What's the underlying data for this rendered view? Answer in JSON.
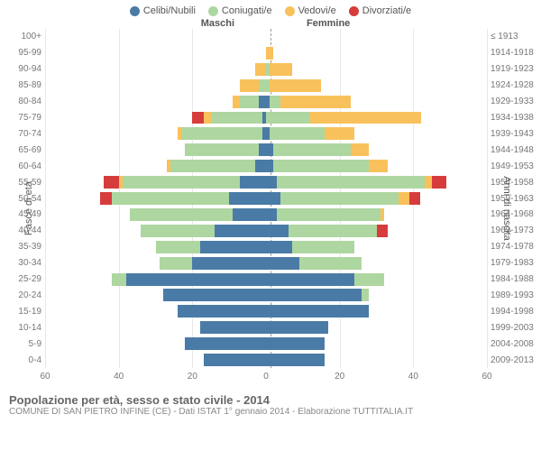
{
  "chart": {
    "type": "population-pyramid",
    "legend": [
      {
        "label": "Celibi/Nubili",
        "color": "#4a7ba6"
      },
      {
        "label": "Coniugati/e",
        "color": "#aed6a0"
      },
      {
        "label": "Vedovi/e",
        "color": "#f9c15b"
      },
      {
        "label": "Divorziati/e",
        "color": "#d73c3c"
      }
    ],
    "header_left": "Maschi",
    "header_right": "Femmine",
    "y_left_label": "Fasce di età",
    "y_right_label": "Anni di nascita",
    "x_max": 60,
    "x_ticks": [
      60,
      40,
      20,
      0,
      20,
      40,
      60
    ],
    "background_color": "#ffffff",
    "grid_color": "#e8e8e8",
    "centerline_color": "#999999",
    "rows": [
      {
        "age": "100+",
        "birth": "≤ 1913",
        "m": [
          0,
          0,
          0,
          0
        ],
        "f": [
          0,
          0,
          0,
          0
        ]
      },
      {
        "age": "95-99",
        "birth": "1914-1918",
        "m": [
          0,
          0,
          0,
          0
        ],
        "f": [
          0,
          0,
          2,
          0
        ]
      },
      {
        "age": "90-94",
        "birth": "1919-1923",
        "m": [
          0,
          0,
          3,
          0
        ],
        "f": [
          0,
          1,
          6,
          0
        ]
      },
      {
        "age": "85-89",
        "birth": "1924-1928",
        "m": [
          0,
          2,
          5,
          0
        ],
        "f": [
          0,
          1,
          14,
          0
        ]
      },
      {
        "age": "80-84",
        "birth": "1929-1933",
        "m": [
          2,
          5,
          2,
          0
        ],
        "f": [
          1,
          3,
          19,
          0
        ]
      },
      {
        "age": "75-79",
        "birth": "1934-1938",
        "m": [
          1,
          14,
          2,
          3
        ],
        "f": [
          0,
          12,
          30,
          0
        ]
      },
      {
        "age": "70-74",
        "birth": "1939-1943",
        "m": [
          1,
          22,
          1,
          0
        ],
        "f": [
          1,
          15,
          8,
          0
        ]
      },
      {
        "age": "65-69",
        "birth": "1944-1948",
        "m": [
          2,
          20,
          0,
          0
        ],
        "f": [
          2,
          21,
          5,
          0
        ]
      },
      {
        "age": "60-64",
        "birth": "1949-1953",
        "m": [
          3,
          23,
          1,
          0
        ],
        "f": [
          2,
          26,
          5,
          0
        ]
      },
      {
        "age": "55-59",
        "birth": "1954-1958",
        "m": [
          7,
          32,
          1,
          4
        ],
        "f": [
          3,
          40,
          2,
          4
        ]
      },
      {
        "age": "50-54",
        "birth": "1959-1963",
        "m": [
          10,
          32,
          0,
          3
        ],
        "f": [
          4,
          32,
          3,
          3
        ]
      },
      {
        "age": "45-49",
        "birth": "1964-1968",
        "m": [
          9,
          28,
          0,
          0
        ],
        "f": [
          3,
          28,
          1,
          0
        ]
      },
      {
        "age": "40-44",
        "birth": "1969-1973",
        "m": [
          14,
          20,
          0,
          0
        ],
        "f": [
          6,
          24,
          0,
          3
        ]
      },
      {
        "age": "35-39",
        "birth": "1974-1978",
        "m": [
          18,
          12,
          0,
          0
        ],
        "f": [
          7,
          17,
          0,
          0
        ]
      },
      {
        "age": "30-34",
        "birth": "1979-1983",
        "m": [
          20,
          9,
          0,
          0
        ],
        "f": [
          9,
          17,
          0,
          0
        ]
      },
      {
        "age": "25-29",
        "birth": "1984-1988",
        "m": [
          38,
          4,
          0,
          0
        ],
        "f": [
          24,
          8,
          0,
          0
        ]
      },
      {
        "age": "20-24",
        "birth": "1989-1993",
        "m": [
          28,
          0,
          0,
          0
        ],
        "f": [
          26,
          2,
          0,
          0
        ]
      },
      {
        "age": "15-19",
        "birth": "1994-1998",
        "m": [
          24,
          0,
          0,
          0
        ],
        "f": [
          28,
          0,
          0,
          0
        ]
      },
      {
        "age": "10-14",
        "birth": "1999-2003",
        "m": [
          18,
          0,
          0,
          0
        ],
        "f": [
          17,
          0,
          0,
          0
        ]
      },
      {
        "age": "5-9",
        "birth": "2004-2008",
        "m": [
          22,
          0,
          0,
          0
        ],
        "f": [
          16,
          0,
          0,
          0
        ]
      },
      {
        "age": "0-4",
        "birth": "2009-2013",
        "m": [
          17,
          0,
          0,
          0
        ],
        "f": [
          16,
          0,
          0,
          0
        ]
      }
    ]
  },
  "footer": {
    "title": "Popolazione per età, sesso e stato civile - 2014",
    "subtitle": "COMUNE DI SAN PIETRO INFINE (CE) - Dati ISTAT 1° gennaio 2014 - Elaborazione TUTTITALIA.IT"
  }
}
